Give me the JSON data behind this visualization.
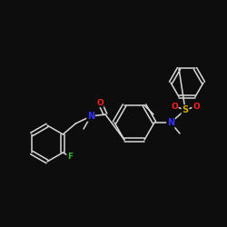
{
  "background": "#0d0d0d",
  "bond_color": "#d8d8d8",
  "atom_colors": {
    "O": "#ff2020",
    "N": "#3333ff",
    "F": "#33bb33",
    "S": "#ccaa00"
  },
  "figsize": [
    2.5,
    2.5
  ],
  "dpi": 100
}
